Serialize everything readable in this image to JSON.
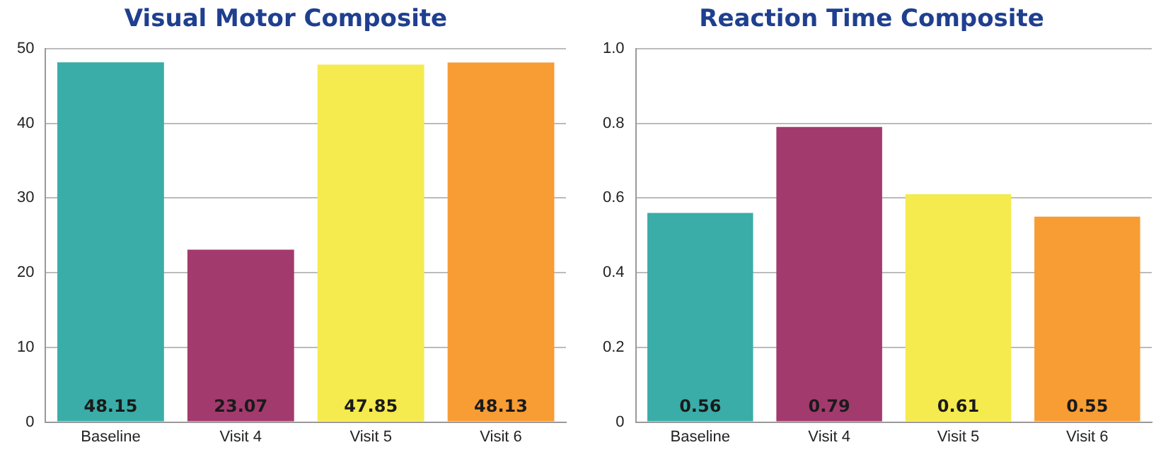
{
  "chart_data": [
    {
      "type": "bar",
      "title": "Visual Motor Composite",
      "categories": [
        "Baseline",
        "Visit 4",
        "Visit 5",
        "Visit 6"
      ],
      "values": [
        48.15,
        23.07,
        47.85,
        48.13
      ],
      "colors": [
        "#3aada8",
        "#a33a6e",
        "#f5ea4e",
        "#f89c34"
      ],
      "ylim": [
        0,
        50
      ],
      "yticks": [
        0,
        10,
        20,
        30,
        40,
        50
      ],
      "grid": "y",
      "legend": false,
      "data_labels": true
    },
    {
      "type": "bar",
      "title": "Reaction Time Composite",
      "categories": [
        "Baseline",
        "Visit 4",
        "Visit 5",
        "Visit 6"
      ],
      "values": [
        0.56,
        0.79,
        0.61,
        0.55
      ],
      "colors": [
        "#3aada8",
        "#a33a6e",
        "#f5ea4e",
        "#f89c34"
      ],
      "ylim": [
        0,
        1
      ],
      "yticks": [
        0,
        0.2,
        0.4,
        0.6,
        0.8,
        {
          "value": 1,
          "label": "1.0"
        }
      ],
      "grid": "y",
      "legend": false,
      "data_labels": true
    }
  ]
}
